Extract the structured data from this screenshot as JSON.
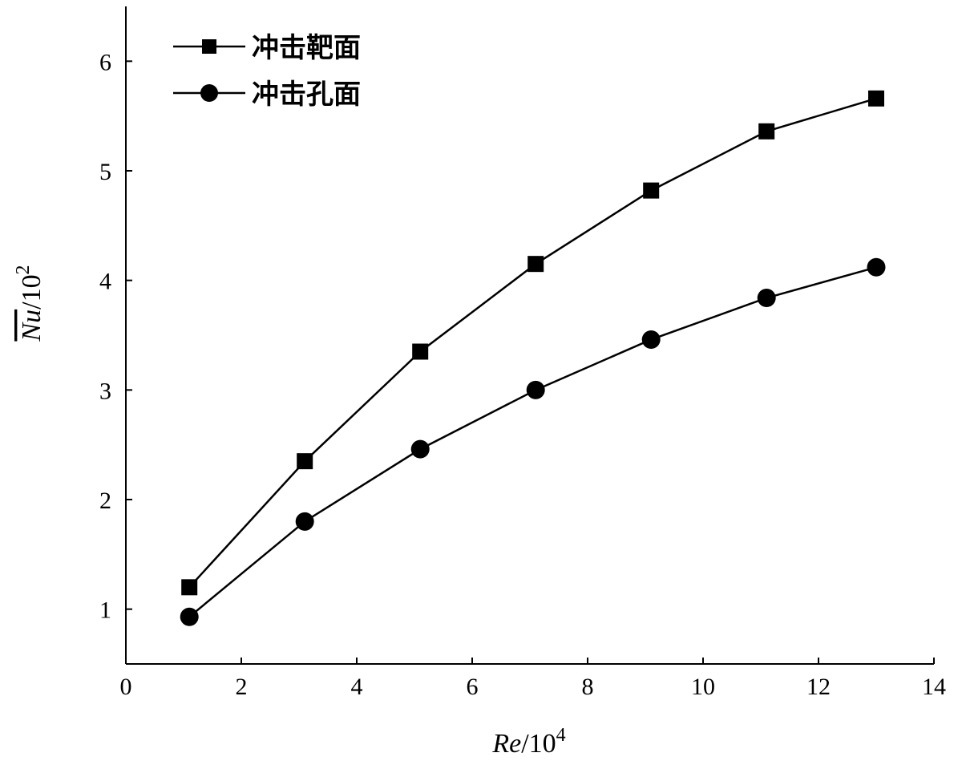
{
  "chart_data": {
    "type": "line",
    "xlabel_main": "Re",
    "xlabel_unit": "/10",
    "xlabel_exp": "4",
    "ylabel_main": "Nu",
    "ylabel_unit": "/10",
    "ylabel_exp": "2",
    "xlim": [
      0,
      14
    ],
    "ylim": [
      0.5,
      6.5
    ],
    "xticks": [
      "0",
      "2",
      "4",
      "6",
      "8",
      "10",
      "12",
      "14"
    ],
    "yticks": [
      "1",
      "2",
      "3",
      "4",
      "5",
      "6"
    ],
    "grid": false,
    "legend_position": "top-left",
    "x": [
      1.1,
      3.1,
      5.1,
      7.1,
      9.1,
      11.1,
      13.0
    ],
    "series": [
      {
        "name": "冲击靶面",
        "marker": "square",
        "color": "#000000",
        "values": [
          1.2,
          2.35,
          3.35,
          4.15,
          4.82,
          5.36,
          5.66
        ]
      },
      {
        "name": "冲击孔面",
        "marker": "circle",
        "color": "#000000",
        "values": [
          0.93,
          1.8,
          2.46,
          3.0,
          3.46,
          3.84,
          4.12
        ]
      }
    ]
  }
}
